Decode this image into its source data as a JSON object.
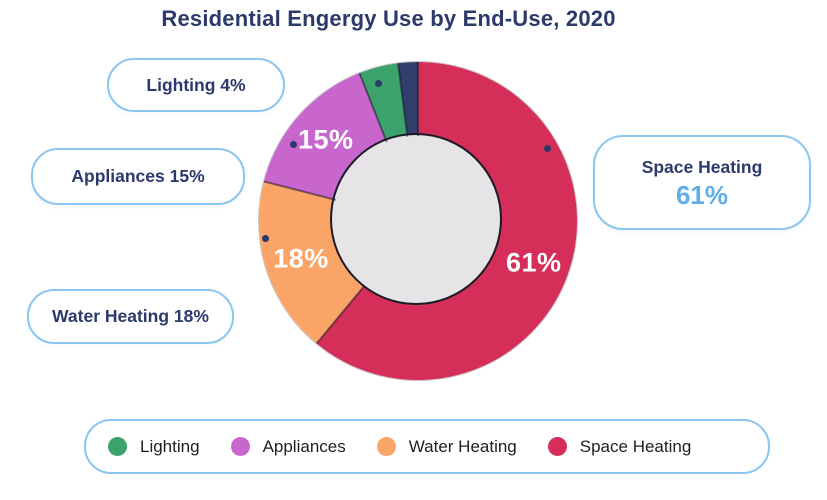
{
  "title": "Residential Engergy Use by End-Use, 2020",
  "chart_data": {
    "type": "pie",
    "subtype": "donut",
    "title": "Residential Engergy Use by End-Use, 2020",
    "unit": "%",
    "direction": "clockwise",
    "start_angle_deg": 0,
    "inner_radius_ratio": 0.54,
    "hole_color": "#E7E4E8",
    "legend_position": "bottom",
    "slices": [
      {
        "label": "Space Heating",
        "value": 61,
        "color": "#D42E59",
        "inside_label": "61%"
      },
      {
        "label": "Water Heating",
        "value": 18,
        "color": "#FBA467",
        "inside_label": "18%"
      },
      {
        "label": "Appliances",
        "value": 15,
        "color": "#C966CE",
        "inside_label": "15%"
      },
      {
        "label": "Lighting",
        "value": 4,
        "color": "#3BA36B",
        "inside_label": ""
      },
      {
        "label": "",
        "value": 2,
        "color": "#2F3E6A",
        "inside_label": ""
      }
    ]
  },
  "callouts": {
    "lighting": {
      "text": "Lighting 4%"
    },
    "appliances": {
      "text": "Appliances 15%"
    },
    "water": {
      "text": "Water Heating 18%"
    },
    "space": {
      "label": "Space Heating",
      "value": "61%"
    }
  },
  "legend": {
    "items": [
      {
        "label": "Lighting",
        "color": "#3BA36B"
      },
      {
        "label": "Appliances",
        "color": "#C966CE"
      },
      {
        "label": "Water Heating",
        "color": "#FBA467"
      },
      {
        "label": "Space Heating",
        "color": "#D42E59"
      }
    ]
  },
  "colors": {
    "title_text": "#2B3A6B",
    "callout_text": "#2C3A6B",
    "callout_border": "#8AC6EF",
    "accent_blue": "#5FAEE8",
    "legend_text": "#1F1F1F",
    "leader_dot": "#2C3A6B",
    "hole": "#E7E4E8",
    "background": "#FFFFFF"
  }
}
